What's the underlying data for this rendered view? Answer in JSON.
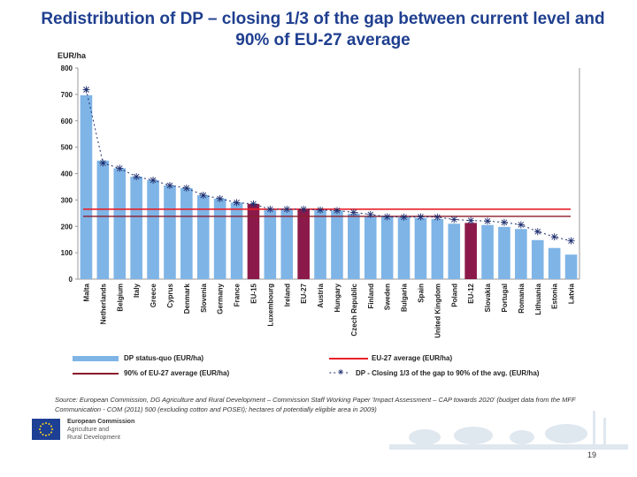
{
  "title": "Redistribution of DP – closing 1/3 of the gap between current level and 90% of EU-27 average",
  "y_unit": "EUR/ha",
  "chart_data": {
    "type": "bar",
    "title": "Redistribution of DP – closing 1/3 of the gap between current level and 90% of EU-27 average",
    "ylabel": "EUR/ha",
    "xlabel": "",
    "ylim": [
      0,
      800
    ],
    "yticks": [
      0,
      100,
      200,
      300,
      400,
      500,
      600,
      700,
      800
    ],
    "categories": [
      "Malta",
      "Netherlands",
      "Belgium",
      "Italy",
      "Greece",
      "Cyprus",
      "Denmark",
      "Slovenia",
      "Germany",
      "France",
      "EU-15",
      "Luxembourg",
      "Ireland",
      "EU-27",
      "Austria",
      "Hungary",
      "Czech Republic",
      "Finland",
      "Sweden",
      "Bulgaria",
      "Spain",
      "United Kingdom",
      "Poland",
      "EU-12",
      "Slovakia",
      "Portugal",
      "Romania",
      "Lithuania",
      "Estonia",
      "Latvia"
    ],
    "highlighted": [
      "EU-15",
      "EU-27",
      "EU-12"
    ],
    "series": [
      {
        "name": "DP status-quo (EUR/ha)",
        "kind": "bar",
        "color": "#7fb4e6",
        "values": [
          697,
          449,
          420,
          388,
          375,
          355,
          345,
          318,
          305,
          290,
          285,
          265,
          265,
          265,
          262,
          260,
          248,
          238,
          236,
          234,
          232,
          228,
          210,
          213,
          205,
          198,
          190,
          148,
          118,
          93
        ]
      },
      {
        "name": "EU-27 average (EUR/ha)",
        "kind": "line",
        "color": "#e8202a",
        "value": 265
      },
      {
        "name": "90% of EU-27 average (EUR/ha)",
        "kind": "line",
        "color": "#8b1a2a",
        "value": 238
      },
      {
        "name": "DP - Closing 1/3 of the gap to 90% of the avg. (EUR/ha)",
        "kind": "marker-line",
        "color": "#1f2f6f",
        "values": [
          718,
          440,
          420,
          388,
          375,
          355,
          345,
          318,
          305,
          290,
          285,
          265,
          265,
          265,
          262,
          260,
          253,
          245,
          236,
          235,
          236,
          235,
          226,
          222,
          220,
          215,
          206,
          180,
          160,
          145
        ]
      }
    ],
    "grid": false,
    "legend_position": "bottom"
  },
  "legend": {
    "bars": "DP status-quo (EUR/ha)",
    "eu27": "EU-27 average (EUR/ha)",
    "pct90": "90% of EU-27 average (EUR/ha)",
    "closing": "DP - Closing 1/3 of the gap to 90% of the avg. (EUR/ha)"
  },
  "source": "Source: European Commission, DG Agriculture and Rural Development – Commission Staff Working Paper 'Impact Assessment – CAP towards 2020' (budget data from the MFF Communication - COM (2011) 500 (excluding cotton and POSEI); hectares of potentially eligible area in 2009)",
  "footer": {
    "org_line1": "European Commission",
    "org_line2": "Agriculture and",
    "org_line3": "Rural Development",
    "page_number": "19"
  },
  "colors": {
    "title": "#1f3f8f",
    "bar": "#7fb4e6",
    "bar_highlight": "#8b1a4a",
    "eu27_line": "#e8202a",
    "pct90_line": "#8b1a2a",
    "marker": "#1f2f6f"
  }
}
